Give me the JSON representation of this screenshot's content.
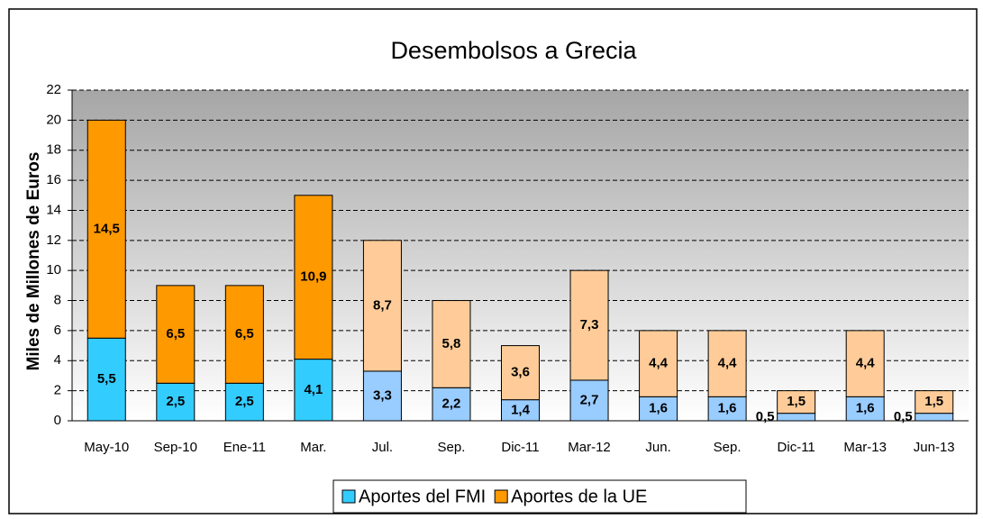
{
  "chart_data": {
    "type": "stacked_bar",
    "title": "Desembolsos a Grecia",
    "y_label": "Miles de Millones de Euros",
    "categories": [
      "May-10",
      "Sep-10",
      "Ene-11",
      "Mar.",
      "Jul.",
      "Sep.",
      "Dic-11",
      "Mar-12",
      "Jun.",
      "Sep.",
      "Dic-11",
      "Mar-13",
      "Jun-13"
    ],
    "series": [
      {
        "name": "Aportes del FMI",
        "color": "#33ccff",
        "colors": [
          "#33ccff",
          "#33ccff",
          "#33ccff",
          "#33ccff",
          "#99ccff",
          "#99ccff",
          "#99ccff",
          "#99ccff",
          "#99ccff",
          "#99ccff",
          "#99ccff",
          "#99ccff",
          "#99ccff"
        ],
        "values": [
          5.5,
          2.5,
          2.5,
          4.1,
          3.3,
          2.2,
          1.4,
          2.7,
          1.6,
          1.6,
          0.5,
          1.6,
          0.5
        ],
        "value_labels": [
          "5,5",
          "2,5",
          "2,5",
          "4,1",
          "3,3",
          "2,2",
          "1,4",
          "2,7",
          "1,6",
          "1,6",
          "0,5",
          "1,6",
          "0,5"
        ]
      },
      {
        "name": "Aportes de la UE",
        "color": "#ff9900",
        "colors": [
          "#ff9900",
          "#ff9900",
          "#ff9900",
          "#ff9900",
          "#ffcc99",
          "#ffcc99",
          "#ffcc99",
          "#ffcc99",
          "#ffcc99",
          "#ffcc99",
          "#ffcc99",
          "#ffcc99",
          "#ffcc99"
        ],
        "values": [
          14.5,
          6.5,
          6.5,
          10.9,
          8.7,
          5.8,
          3.6,
          7.3,
          4.4,
          4.4,
          1.5,
          4.4,
          1.5
        ],
        "value_labels": [
          "14,5",
          "6,5",
          "6,5",
          "10,9",
          "8,7",
          "5,8",
          "3,6",
          "7,3",
          "4,4",
          "4,4",
          "1,5",
          "4,4",
          "1,5"
        ]
      }
    ],
    "ylim": [
      0,
      22
    ],
    "yticks": [
      0,
      2,
      4,
      6,
      8,
      10,
      12,
      14,
      16,
      18,
      20,
      22
    ],
    "grid": true,
    "legend": "bottom"
  }
}
